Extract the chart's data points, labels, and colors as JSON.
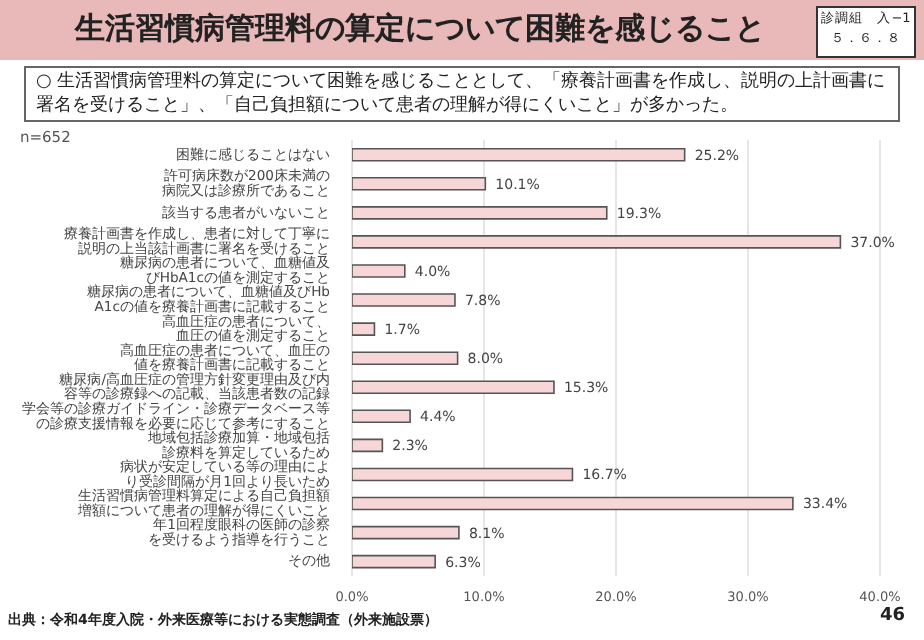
{
  "chart_data": {
    "type": "bar",
    "orientation": "horizontal",
    "title": "生活習慣病管理料の算定について困難を感じること",
    "subtitle": "○ 生活習慣病管理料の算定について困難を感じることとして、「療養計画書を作成し、説明の上計画書に署名を受けること」、「自己負担額について患者の理解が得にくいこと」が多かった。",
    "categories": [
      "困難に感じることはない",
      "許可病床数が200床未満の病院又は診療所であること",
      "該当する患者がいないこと",
      "療養計画書を作成し、患者に対して丁寧に説明の上当該計画書に署名を受けること",
      "糖尿病の患者について、血糖値及びHbA1cの値を測定すること",
      "糖尿病の患者について、血糖値及びHbA1cの値を療養計画書に記載すること",
      "高血圧症の患者について、血圧の値を測定すること",
      "高血圧症の患者について、血圧の値を療養計画書に記載すること",
      "糖尿病/高血圧症の管理方針変更理由及び内容等の診療録への記載、当該患者数の記録",
      "学会等の診療ガイドライン・診療データベース等の診療支援情報を必要に応じて参考にすること",
      "地域包括診療加算・地域包括診療料を算定しているため",
      "病状が安定している等の理由により受診間隔が月1回より長いため",
      "生活習慣病管理料算定による自己負担額増額について患者の理解が得にくいこと",
      "年1回程度眼科の医師の診察を受けるよう指導を行うこと",
      "その他"
    ],
    "values": [
      25.2,
      10.1,
      19.3,
      37.0,
      4.0,
      7.8,
      1.7,
      8.0,
      15.3,
      4.4,
      2.3,
      16.7,
      33.4,
      8.1,
      6.3
    ],
    "value_labels": [
      "25.2%",
      "10.1%",
      "19.3%",
      "37.0%",
      "4.0%",
      "7.8%",
      "1.7%",
      "8.0%",
      "15.3%",
      "4.4%",
      "2.3%",
      "16.7%",
      "33.4%",
      "8.1%",
      "6.3%"
    ],
    "color": "#f6d6d6",
    "xlim": [
      0,
      40
    ],
    "xticks": [
      {
        "value": 0,
        "label": "0.0%"
      },
      {
        "value": 10,
        "label": "10.0%"
      },
      {
        "value": 20,
        "label": "20.0%"
      },
      {
        "value": 30,
        "label": "30.0%"
      },
      {
        "value": 40,
        "label": "40.0%"
      }
    ],
    "grid": "x",
    "annotations": [
      "n=652",
      "出典：令和4年度入院・外来医療等における実態調査（外来施設票）",
      "46",
      "診調組　入−1",
      "５．６．８"
    ]
  }
}
